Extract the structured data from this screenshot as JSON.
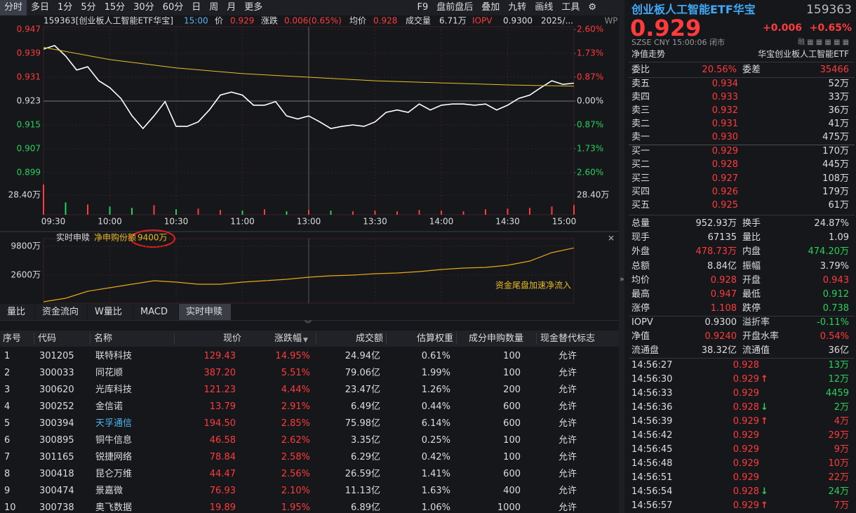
{
  "toolbar": {
    "tabs": [
      "分时",
      "多日",
      "1分",
      "5分",
      "15分",
      "30分",
      "60分",
      "日",
      "周",
      "月",
      "更多"
    ],
    "tools": [
      "F9",
      "盘前盘后",
      "叠加",
      "九转",
      "画线",
      "工具"
    ]
  },
  "chart_header": {
    "code_name": "159363[创业板人工智能ETF华宝]",
    "time": "15:00",
    "price_label": "价",
    "price": "0.929",
    "change_label": "涨跌",
    "change": "0.006(0.65%)",
    "avg_label": "均价",
    "avg": "0.928",
    "volume_label": "成交量",
    "volume": "6.71万",
    "iopv_label": "IOPV",
    "iopv": "0.9300",
    "date": "2025/..."
  },
  "price_chart": {
    "type": "line",
    "xlim": [
      0,
      240
    ],
    "xticks": [
      {
        "value": 0,
        "label": "09:30"
      },
      {
        "value": 30,
        "label": "10:00"
      },
      {
        "value": 60,
        "label": "10:30"
      },
      {
        "value": 90,
        "label": "11:00"
      },
      {
        "value": 120,
        "label": "13:00"
      },
      {
        "value": 150,
        "label": "13:30"
      },
      {
        "value": 180,
        "label": "14:00"
      },
      {
        "value": 210,
        "label": "14:30"
      },
      {
        "value": 240,
        "label": "15:00"
      }
    ],
    "ylim": [
      0.8957,
      0.947
    ],
    "yticks": [
      0.947,
      0.939,
      0.931,
      0.923,
      0.915,
      0.907,
      0.899
    ],
    "y2lim": [
      -2.957,
      2.6
    ],
    "y2ticks": [
      {
        "value": 2.6,
        "label": "2.60%"
      },
      {
        "value": 1.73,
        "label": "1.73%"
      },
      {
        "value": 0.87,
        "label": "0.87%"
      },
      {
        "value": 0,
        "label": "0.00%"
      },
      {
        "value": -0.87,
        "label": "0.87%"
      },
      {
        "value": -1.73,
        "label": "1.73%"
      },
      {
        "value": -2.6,
        "label": "2.60%"
      }
    ],
    "series": [
      {
        "color": "#ffffff",
        "x": [
          0,
          5,
          10,
          15,
          20,
          25,
          30,
          35,
          40,
          45,
          50,
          55,
          60,
          65,
          70,
          75,
          80,
          85,
          90,
          95,
          100,
          105,
          110,
          115,
          120,
          125,
          130,
          135,
          140,
          145,
          150,
          155,
          160,
          165,
          170,
          175,
          180,
          185,
          190,
          195,
          200,
          205,
          210,
          215,
          220,
          225,
          230,
          235,
          240
        ],
        "values": [
          0.9404,
          0.9416,
          0.9381,
          0.9334,
          0.9345,
          0.9298,
          0.9275,
          0.9239,
          0.9181,
          0.9138,
          0.918,
          0.9228,
          0.9145,
          0.9145,
          0.916,
          0.92,
          0.925,
          0.926,
          0.925,
          0.9216,
          0.9216,
          0.9228,
          0.918,
          0.917,
          0.918,
          0.916,
          0.9138,
          0.9145,
          0.915,
          0.9145,
          0.916,
          0.9192,
          0.92,
          0.9192,
          0.922,
          0.92,
          0.9216,
          0.922,
          0.922,
          0.9216,
          0.922,
          0.92,
          0.9216,
          0.9239,
          0.925,
          0.9275,
          0.9298,
          0.9286,
          0.929
        ]
      },
      {
        "color": "#e6c229",
        "x": [
          0,
          30,
          60,
          90,
          120,
          150,
          180,
          210,
          240
        ],
        "values": [
          0.941,
          0.9369,
          0.9341,
          0.9322,
          0.931,
          0.9298,
          0.9291,
          0.9284,
          0.928
        ]
      }
    ],
    "volume": {
      "ylim": [
        0,
        45
      ],
      "yticks": [
        {
          "value": 28.4,
          "label": "28.40万"
        }
      ],
      "up_color": "#ff3b3b",
      "down_color": "#2ad05a",
      "x": [
        0,
        10,
        20,
        30,
        40,
        50,
        60,
        70,
        80,
        90,
        100,
        110,
        120,
        130,
        140,
        150,
        160,
        170,
        180,
        190,
        200,
        210,
        220,
        230,
        240
      ],
      "values": [
        44,
        18,
        15,
        12,
        10,
        14,
        8,
        9,
        7,
        6,
        8,
        5,
        7,
        6,
        5,
        6,
        5,
        7,
        6,
        5,
        8,
        9,
        10,
        12,
        14
      ]
    }
  },
  "flow_chart": {
    "type": "line",
    "title": "实时申赎",
    "legend_label": "净申购份额",
    "last_label": "9400万",
    "annotation": "资金尾盘加速净流入",
    "color": "#e6a817",
    "xlim": [
      0,
      240
    ],
    "ylim": [
      -4070,
      11730
    ],
    "yticks": [
      {
        "value": 9800,
        "label": "9800万"
      },
      {
        "value": 2600,
        "label": "2600万"
      }
    ],
    "x": [
      0,
      10,
      20,
      30,
      40,
      50,
      60,
      70,
      80,
      90,
      100,
      110,
      120,
      130,
      140,
      150,
      160,
      170,
      180,
      190,
      200,
      210,
      220,
      230,
      240
    ],
    "values": [
      -4070,
      -3200,
      -1440,
      -560,
      320,
      1200,
      840,
      320,
      320,
      840,
      1200,
      1550,
      2070,
      2420,
      2600,
      2950,
      3130,
      3480,
      4000,
      4360,
      4530,
      5060,
      6110,
      8220,
      9400
    ]
  },
  "bottom_tabs": [
    "量比",
    "资金流向",
    "W量比",
    "MACD",
    "实时申赎"
  ],
  "table": {
    "headers": [
      "序号",
      "代码",
      "名称",
      "现价",
      "涨跌幅",
      "成交额",
      "估算权重",
      "成分申购数量",
      "现金替代标志"
    ],
    "rows": [
      [
        "1",
        "301205",
        "联特科技",
        "129.43",
        "14.95%",
        "24.94亿",
        "0.61%",
        "100",
        "允许"
      ],
      [
        "2",
        "300033",
        "同花顺",
        "387.20",
        "5.51%",
        "79.06亿",
        "1.99%",
        "100",
        "允许"
      ],
      [
        "3",
        "300620",
        "光库科技",
        "121.23",
        "4.44%",
        "23.47亿",
        "1.26%",
        "200",
        "允许"
      ],
      [
        "4",
        "300252",
        "金信诺",
        "13.79",
        "2.91%",
        "6.49亿",
        "0.44%",
        "600",
        "允许"
      ],
      [
        "5",
        "300394",
        "天孚通信",
        "194.50",
        "2.85%",
        "75.98亿",
        "6.14%",
        "600",
        "允许"
      ],
      [
        "6",
        "300895",
        "铜牛信息",
        "46.58",
        "2.62%",
        "3.35亿",
        "0.25%",
        "100",
        "允许"
      ],
      [
        "7",
        "301165",
        "锐捷网络",
        "78.84",
        "2.58%",
        "6.29亿",
        "0.42%",
        "100",
        "允许"
      ],
      [
        "8",
        "300418",
        "昆仑万维",
        "44.47",
        "2.56%",
        "26.59亿",
        "1.41%",
        "600",
        "允许"
      ],
      [
        "9",
        "300474",
        "景嘉微",
        "76.93",
        "2.10%",
        "11.13亿",
        "1.63%",
        "400",
        "允许"
      ],
      [
        "10",
        "300738",
        "奥飞数据",
        "19.89",
        "1.95%",
        "6.89亿",
        "1.06%",
        "1000",
        "允许"
      ]
    ]
  },
  "quote": {
    "name": "创业板人工智能ETF华宝",
    "code": "159363",
    "price": "0.929",
    "change": "+0.006",
    "pct": "+0.65%",
    "meta": "SZSE  CNY  15:00:06  闭市",
    "nav_link": "净值走势",
    "fund_name": "华宝创业板人工智能ETF"
  },
  "order_book": {
    "ratio_label": "委比",
    "ratio": "20.56%",
    "diff_label": "委差",
    "diff": "35466",
    "asks": [
      [
        "卖五",
        "0.934",
        "52万"
      ],
      [
        "卖四",
        "0.933",
        "33万"
      ],
      [
        "卖三",
        "0.932",
        "36万"
      ],
      [
        "卖二",
        "0.931",
        "41万"
      ],
      [
        "卖一",
        "0.930",
        "475万"
      ]
    ],
    "bids": [
      [
        "买一",
        "0.929",
        "170万"
      ],
      [
        "买二",
        "0.928",
        "445万"
      ],
      [
        "买三",
        "0.927",
        "108万"
      ],
      [
        "买四",
        "0.926",
        "179万"
      ],
      [
        "买五",
        "0.925",
        "61万"
      ]
    ]
  },
  "stats": [
    [
      "总量",
      "952.93万",
      "换手",
      "24.87%"
    ],
    [
      "现手",
      "67135",
      "量比",
      "1.09"
    ],
    [
      "外盘",
      "478.73万",
      "内盘",
      "474.20万"
    ],
    [
      "总额",
      "8.84亿",
      "振幅",
      "3.79%"
    ],
    [
      "均价",
      "0.928",
      "开盘",
      "0.943"
    ],
    [
      "最高",
      "0.947",
      "最低",
      "0.912"
    ],
    [
      "涨停",
      "1.108",
      "跌停",
      "0.738"
    ]
  ],
  "etf_stats": [
    [
      "IOPV",
      "0.9300",
      "溢折率",
      "-0.11%"
    ],
    [
      "净值",
      "0.9240",
      "开盘水率",
      "0.54%"
    ],
    [
      "流通盘",
      "38.32亿",
      "流通值",
      "36亿"
    ]
  ],
  "ticks": [
    {
      "time": "14:56:27",
      "price": "0.928",
      "vol": "13万",
      "vol_color": "#2ad05a"
    },
    {
      "time": "14:56:30",
      "price": "0.929",
      "dir": "up",
      "vol": "12万",
      "vol_color": "#2ad05a"
    },
    {
      "time": "14:56:33",
      "price": "0.929",
      "vol": "4459",
      "vol_color": "#2ad05a"
    },
    {
      "time": "14:56:36",
      "price": "0.928",
      "dir": "down",
      "vol": "2万",
      "vol_color": "#2ad05a"
    },
    {
      "time": "14:56:39",
      "price": "0.929",
      "dir": "up",
      "vol": "4万",
      "vol_color": "#ff3b3b"
    },
    {
      "time": "14:56:42",
      "price": "0.929",
      "vol": "29万",
      "vol_color": "#ff3b3b"
    },
    {
      "time": "14:56:45",
      "price": "0.929",
      "vol": "9万",
      "vol_color": "#ff3b3b"
    },
    {
      "time": "14:56:48",
      "price": "0.929",
      "vol": "10万",
      "vol_color": "#ff3b3b"
    },
    {
      "time": "14:56:51",
      "price": "0.929",
      "vol": "22万",
      "vol_color": "#ff3b3b"
    },
    {
      "time": "14:56:54",
      "price": "0.928",
      "dir": "down",
      "vol": "24万",
      "vol_color": "#2ad05a"
    },
    {
      "time": "14:56:57",
      "price": "0.929",
      "dir": "up",
      "vol": "7万",
      "vol_color": "#ff3b3b"
    }
  ]
}
